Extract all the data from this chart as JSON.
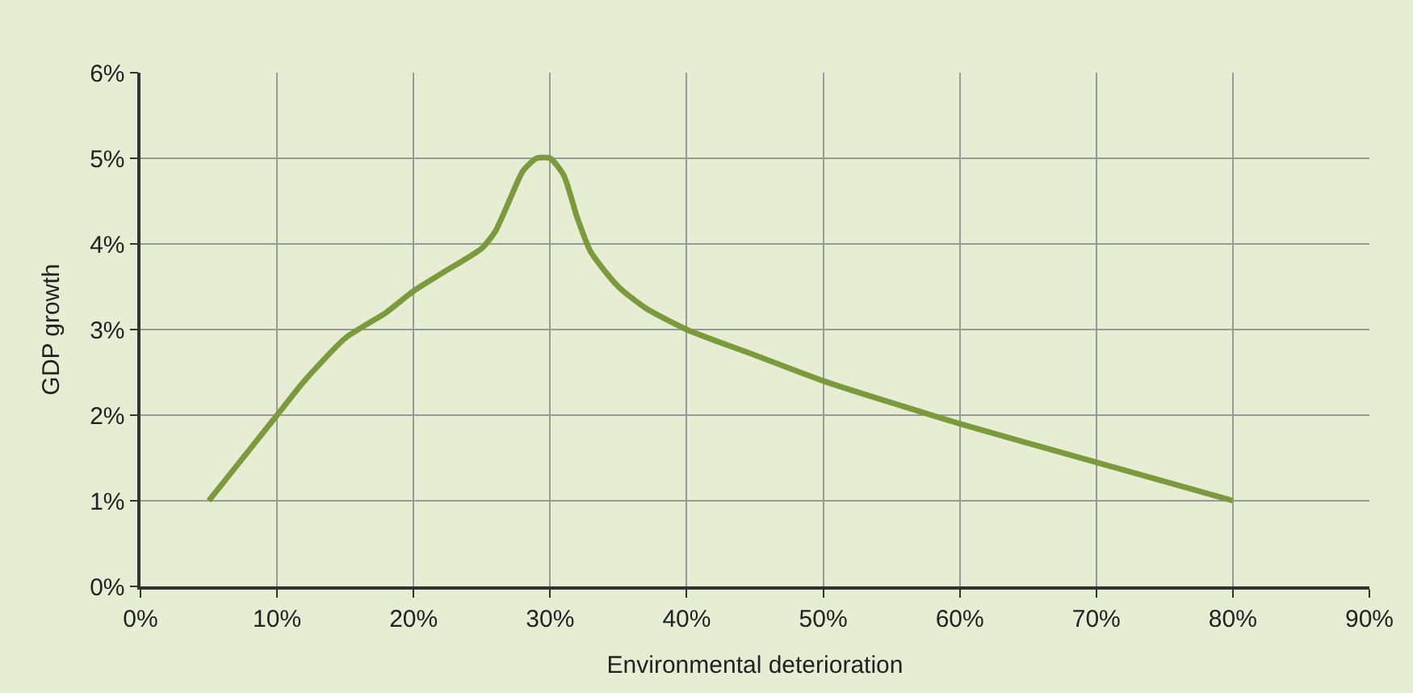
{
  "chart_data": {
    "type": "line",
    "xlabel": "Environmental deterioration",
    "ylabel": "GDP growth",
    "x": [
      5,
      7,
      8,
      10,
      12,
      15,
      18,
      20,
      22,
      25,
      26,
      27,
      28,
      29,
      30,
      31,
      32,
      33,
      35,
      37,
      40,
      45,
      50,
      60,
      70,
      80
    ],
    "series": [
      {
        "color": "#7a9a3c",
        "values": [
          1,
          1.4,
          1.6,
          2,
          2.4,
          2.9,
          3.2,
          3.45,
          3.65,
          3.95,
          4.15,
          4.5,
          4.85,
          5.0,
          5.0,
          4.8,
          4.3,
          3.9,
          3.5,
          3.25,
          3.0,
          2.7,
          2.4,
          1.9,
          1.45,
          1.0
        ]
      }
    ],
    "xlim": [
      0,
      90
    ],
    "ylim": [
      0,
      6
    ],
    "xticks": [
      {
        "value": 0,
        "label": "0%"
      },
      {
        "value": 10,
        "label": "10%"
      },
      {
        "value": 20,
        "label": "20%"
      },
      {
        "value": 30,
        "label": "30%"
      },
      {
        "value": 40,
        "label": "40%"
      },
      {
        "value": 50,
        "label": "50%"
      },
      {
        "value": 60,
        "label": "60%"
      },
      {
        "value": 70,
        "label": "70%"
      },
      {
        "value": 80,
        "label": "80%"
      },
      {
        "value": 90,
        "label": "90%"
      }
    ],
    "yticks": [
      {
        "value": 0,
        "label": "0%"
      },
      {
        "value": 1,
        "label": "1%"
      },
      {
        "value": 2,
        "label": "2%"
      },
      {
        "value": 3,
        "label": "3%"
      },
      {
        "value": 4,
        "label": "4%"
      },
      {
        "value": 5,
        "label": "5%"
      },
      {
        "value": 6,
        "label": "6%"
      }
    ],
    "grid": true,
    "marker": "none",
    "line_style": "solid"
  }
}
